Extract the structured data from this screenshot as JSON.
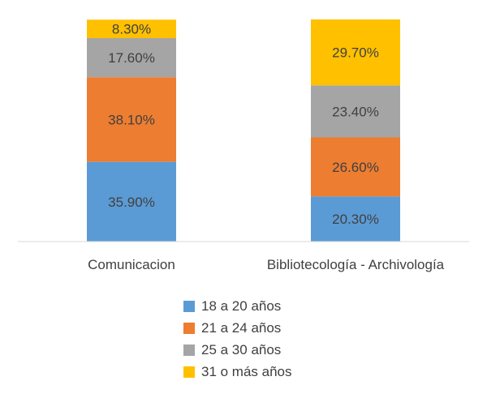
{
  "chart_data": {
    "type": "bar",
    "stacked": true,
    "categories": [
      "Comunicacion",
      "Bibliotecología - Archivología"
    ],
    "series": [
      {
        "name": "18 a 20 años",
        "color": "#5B9BD5",
        "values": [
          35.9,
          20.3
        ],
        "labels": [
          "35.90%",
          "20.30%"
        ]
      },
      {
        "name": "21 a 24 años",
        "color": "#ED7D31",
        "values": [
          38.1,
          26.6
        ],
        "labels": [
          "38.10%",
          "26.60%"
        ]
      },
      {
        "name": "25 a 30 años",
        "color": "#A5A5A5",
        "values": [
          17.6,
          23.4
        ],
        "labels": [
          "17.60%",
          "23.40%"
        ]
      },
      {
        "name": "31 o más años",
        "color": "#FFC000",
        "values": [
          8.3,
          29.7
        ],
        "labels": [
          "8.30%",
          "29.70%"
        ]
      }
    ],
    "ylim": [
      0,
      100
    ],
    "grid": false,
    "legend_position": "bottom"
  }
}
